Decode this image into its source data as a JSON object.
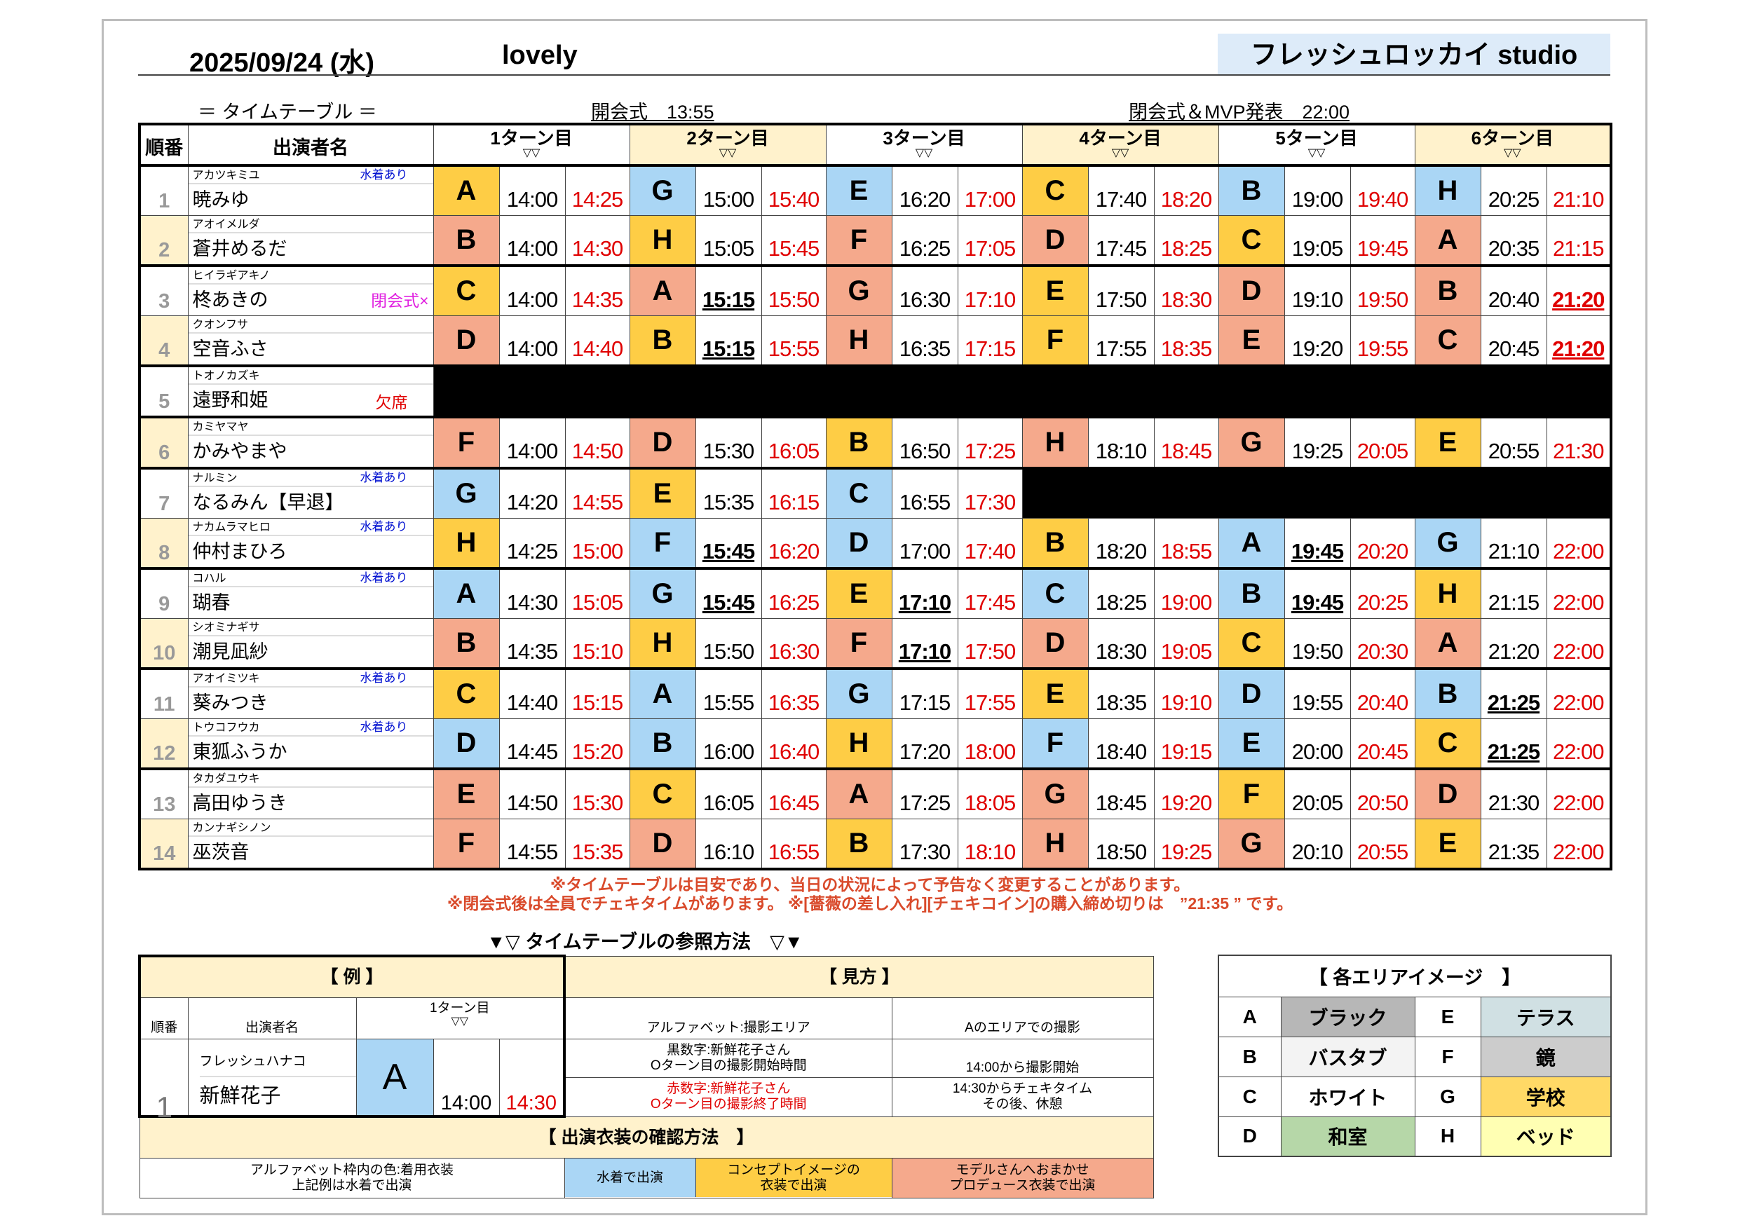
{
  "header": {
    "date": "2025/09/24 (水)",
    "title": "lovely",
    "studio": "フレッシュロッカイ studio"
  },
  "subheader": {
    "label": "＝ タイムテーブル ＝",
    "opening": "開会式　13:55",
    "closing": "閉会式＆MVP発表　22:00"
  },
  "colors": {
    "w": "#aad6f5",
    "c": "#fecd45",
    "p": "#f5a98c",
    "beige": "#fff2cc"
  },
  "table": {
    "col_no": "順番",
    "col_name": "出演者名",
    "turn_marker": "▽▽",
    "turns": [
      "1ターン目",
      "2ターン目",
      "3ターン目",
      "4ターン目",
      "5ターン目",
      "6ターン目"
    ],
    "rows": [
      {
        "no": "1",
        "kana": "アカツキミユ",
        "name": "暁みゆ",
        "tag": "水着あり",
        "tag_type": "swim",
        "slots": [
          [
            "A",
            "c",
            "14:00",
            "14:25"
          ],
          [
            "G",
            "w",
            "15:00",
            "15:40"
          ],
          [
            "E",
            "w",
            "16:20",
            "17:00"
          ],
          [
            "C",
            "c",
            "17:40",
            "18:20"
          ],
          [
            "B",
            "w",
            "19:00",
            "19:40"
          ],
          [
            "H",
            "w",
            "20:25",
            "21:10"
          ]
        ]
      },
      {
        "no": "2",
        "kana": "アオイメルダ",
        "name": "蒼井めるだ",
        "tag": "",
        "tag_type": "",
        "slots": [
          [
            "B",
            "p",
            "14:00",
            "14:30"
          ],
          [
            "H",
            "c",
            "15:05",
            "15:45"
          ],
          [
            "F",
            "p",
            "16:25",
            "17:05"
          ],
          [
            "D",
            "p",
            "17:45",
            "18:25"
          ],
          [
            "C",
            "c",
            "19:05",
            "19:45"
          ],
          [
            "A",
            "p",
            "20:35",
            "21:15"
          ]
        ]
      },
      {
        "no": "3",
        "kana": "ヒイラギアキノ",
        "name": "柊あきの",
        "tag": "閉会式×",
        "tag_type": "close",
        "slots": [
          [
            "C",
            "c",
            "14:00",
            "14:35"
          ],
          [
            "A",
            "p",
            "15:15",
            "15:50",
            "s"
          ],
          [
            "G",
            "p",
            "16:30",
            "17:10"
          ],
          [
            "E",
            "c",
            "17:50",
            "18:30"
          ],
          [
            "D",
            "p",
            "19:10",
            "19:50"
          ],
          [
            "B",
            "p",
            "20:40",
            "21:20",
            "e"
          ]
        ]
      },
      {
        "no": "4",
        "kana": "クオンフサ",
        "name": "空音ふさ",
        "tag": "",
        "tag_type": "",
        "slots": [
          [
            "D",
            "p",
            "14:00",
            "14:40"
          ],
          [
            "B",
            "c",
            "15:15",
            "15:55",
            "s"
          ],
          [
            "H",
            "p",
            "16:35",
            "17:15"
          ],
          [
            "F",
            "c",
            "17:55",
            "18:35"
          ],
          [
            "E",
            "p",
            "19:20",
            "19:55"
          ],
          [
            "C",
            "p",
            "20:45",
            "21:20",
            "e"
          ]
        ]
      },
      {
        "no": "5",
        "kana": "トオノカズキ",
        "name": "遠野和姫",
        "tag": "欠席",
        "tag_type": "absent",
        "slots": []
      },
      {
        "no": "6",
        "kana": "カミヤマヤ",
        "name": "かみやまや",
        "tag": "",
        "tag_type": "",
        "slots": [
          [
            "F",
            "p",
            "14:00",
            "14:50"
          ],
          [
            "D",
            "p",
            "15:30",
            "16:05"
          ],
          [
            "B",
            "c",
            "16:50",
            "17:25"
          ],
          [
            "H",
            "p",
            "18:10",
            "18:45"
          ],
          [
            "G",
            "p",
            "19:25",
            "20:05"
          ],
          [
            "E",
            "c",
            "20:55",
            "21:30"
          ]
        ]
      },
      {
        "no": "7",
        "kana": "ナルミン",
        "name": "なるみん【早退】",
        "tag": "水着あり",
        "tag_type": "swim",
        "slots": [
          [
            "G",
            "w",
            "14:20",
            "14:55"
          ],
          [
            "E",
            "c",
            "15:35",
            "16:15"
          ],
          [
            "C",
            "w",
            "16:55",
            "17:30"
          ]
        ]
      },
      {
        "no": "8",
        "kana": "ナカムラマヒロ",
        "name": "仲村まひろ",
        "tag": "水着あり",
        "tag_type": "swim",
        "slots": [
          [
            "H",
            "c",
            "14:25",
            "15:00"
          ],
          [
            "F",
            "w",
            "15:45",
            "16:20",
            "s"
          ],
          [
            "D",
            "w",
            "17:00",
            "17:40"
          ],
          [
            "B",
            "c",
            "18:20",
            "18:55"
          ],
          [
            "A",
            "w",
            "19:45",
            "20:20",
            "s"
          ],
          [
            "G",
            "w",
            "21:10",
            "22:00"
          ]
        ]
      },
      {
        "no": "9",
        "kana": "コハル",
        "name": "瑚春",
        "tag": "水着あり",
        "tag_type": "swim",
        "slots": [
          [
            "A",
            "w",
            "14:30",
            "15:05"
          ],
          [
            "G",
            "w",
            "15:45",
            "16:25",
            "s"
          ],
          [
            "E",
            "c",
            "17:10",
            "17:45",
            "s"
          ],
          [
            "C",
            "w",
            "18:25",
            "19:00"
          ],
          [
            "B",
            "w",
            "19:45",
            "20:25",
            "s"
          ],
          [
            "H",
            "c",
            "21:15",
            "22:00"
          ]
        ]
      },
      {
        "no": "10",
        "kana": "シオミナギサ",
        "name": "潮見凪紗",
        "tag": "",
        "tag_type": "",
        "slots": [
          [
            "B",
            "p",
            "14:35",
            "15:10"
          ],
          [
            "H",
            "c",
            "15:50",
            "16:30"
          ],
          [
            "F",
            "p",
            "17:10",
            "17:50",
            "s"
          ],
          [
            "D",
            "p",
            "18:30",
            "19:05"
          ],
          [
            "C",
            "c",
            "19:50",
            "20:30"
          ],
          [
            "A",
            "p",
            "21:20",
            "22:00"
          ]
        ]
      },
      {
        "no": "11",
        "kana": "アオイミツキ",
        "name": "葵みつき",
        "tag": "水着あり",
        "tag_type": "swim",
        "slots": [
          [
            "C",
            "c",
            "14:40",
            "15:15"
          ],
          [
            "A",
            "w",
            "15:55",
            "16:35"
          ],
          [
            "G",
            "w",
            "17:15",
            "17:55"
          ],
          [
            "E",
            "c",
            "18:35",
            "19:10"
          ],
          [
            "D",
            "w",
            "19:55",
            "20:40"
          ],
          [
            "B",
            "w",
            "21:25",
            "22:00",
            "s"
          ]
        ]
      },
      {
        "no": "12",
        "kana": "トウコフウカ",
        "name": "東狐ふうか",
        "tag": "水着あり",
        "tag_type": "swim",
        "slots": [
          [
            "D",
            "w",
            "14:45",
            "15:20"
          ],
          [
            "B",
            "w",
            "16:00",
            "16:40"
          ],
          [
            "H",
            "c",
            "17:20",
            "18:00"
          ],
          [
            "F",
            "w",
            "18:40",
            "19:15"
          ],
          [
            "E",
            "w",
            "20:00",
            "20:45"
          ],
          [
            "C",
            "c",
            "21:25",
            "22:00",
            "s"
          ]
        ]
      },
      {
        "no": "13",
        "kana": "タカダユウキ",
        "name": "高田ゆうき",
        "tag": "",
        "tag_type": "",
        "slots": [
          [
            "E",
            "p",
            "14:50",
            "15:30"
          ],
          [
            "C",
            "c",
            "16:05",
            "16:45"
          ],
          [
            "A",
            "p",
            "17:25",
            "18:05"
          ],
          [
            "G",
            "p",
            "18:45",
            "19:20"
          ],
          [
            "F",
            "c",
            "20:05",
            "20:50"
          ],
          [
            "D",
            "p",
            "21:30",
            "22:00"
          ]
        ]
      },
      {
        "no": "14",
        "kana": "カンナギシノン",
        "name": "巫茨音",
        "tag": "",
        "tag_type": "",
        "slots": [
          [
            "F",
            "p",
            "14:55",
            "15:35"
          ],
          [
            "D",
            "p",
            "16:10",
            "16:55"
          ],
          [
            "B",
            "c",
            "17:30",
            "18:10"
          ],
          [
            "H",
            "p",
            "18:50",
            "19:25"
          ],
          [
            "G",
            "p",
            "20:10",
            "20:55"
          ],
          [
            "E",
            "c",
            "21:35",
            "22:00"
          ]
        ]
      }
    ]
  },
  "notes": [
    "※タイムテーブルは目安であり、当日の状況によって予告なく変更することがあります。",
    "※閉会式後は全員でチェキタイムがあります。 ※[薔薇の差し入れ][チェキコイン]の購入締め切りは　”21:35 ” です。"
  ],
  "guide": {
    "title": "▼▽ タイムテーブルの参照方法　▽▼",
    "example_title": "【 例 】",
    "howto_title": "【 見方 】",
    "ex_col_no": "順番",
    "ex_col_name": "出演者名",
    "ex_turn": "1ターン目",
    "ex_marker": "▽▽",
    "ex_no": "1",
    "ex_kana": "フレッシュハナコ",
    "ex_name": "新鮮花子",
    "ex_area": "A",
    "ex_start": "14:00",
    "ex_end": "14:30",
    "how": [
      [
        "アルファベット:撮影エリア",
        "Aのエリアでの撮影"
      ],
      [
        "黒数字:新鮮花子さん\nOターン目の撮影開始時間",
        "14:00から撮影開始"
      ],
      [
        "赤数字:新鮮花子さん\nOターン目の撮影終了時間",
        "14:30からチェキタイム\nその後、休憩"
      ]
    ],
    "costume_title": "【 出演衣装の確認方法　】",
    "costume_desc": "アルファベット枠内の色:着用衣装\n上記例は水着で出演",
    "costume": [
      "水着で出演",
      "コンセプトイメージの\n衣装で出演",
      "モデルさんへおまかせ\nプロデュース衣装で出演"
    ]
  },
  "areas": {
    "title": "【 各エリアイメージ　】",
    "items": [
      {
        "code": "A",
        "name": "ブラック",
        "color": "#b7b7b7"
      },
      {
        "code": "E",
        "name": "テラス",
        "color": "#d0e0e3"
      },
      {
        "code": "B",
        "name": "バスタブ",
        "color": "#f3f3f3"
      },
      {
        "code": "F",
        "name": "鏡",
        "color": "#cccccc"
      },
      {
        "code": "C",
        "name": "ホワイト",
        "color": "#ffffff"
      },
      {
        "code": "G",
        "name": "学校",
        "color": "#ffd966"
      },
      {
        "code": "D",
        "name": "和室",
        "color": "#b6d7a8"
      },
      {
        "code": "H",
        "name": "ベッド",
        "color": "#ffffb3"
      }
    ]
  }
}
